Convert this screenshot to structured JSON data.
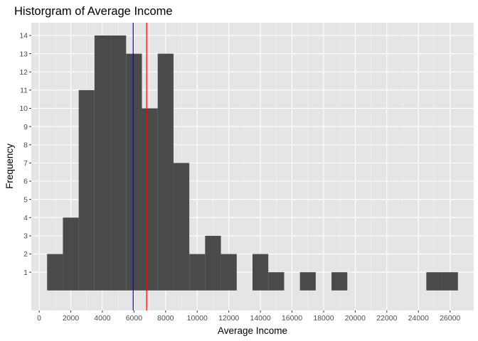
{
  "chart_data": {
    "type": "histogram",
    "title": "Historgram of Average Income",
    "xlabel": "Average Income",
    "ylabel": "Frequency",
    "bin_width": 1000,
    "bins": [
      {
        "start": 500,
        "end": 1500,
        "count": 2
      },
      {
        "start": 1500,
        "end": 2500,
        "count": 4
      },
      {
        "start": 2500,
        "end": 3500,
        "count": 11
      },
      {
        "start": 3500,
        "end": 4500,
        "count": 14
      },
      {
        "start": 4500,
        "end": 5500,
        "count": 14
      },
      {
        "start": 5500,
        "end": 6500,
        "count": 13
      },
      {
        "start": 6500,
        "end": 7500,
        "count": 10
      },
      {
        "start": 7500,
        "end": 8500,
        "count": 13
      },
      {
        "start": 8500,
        "end": 9500,
        "count": 7
      },
      {
        "start": 9500,
        "end": 10500,
        "count": 2
      },
      {
        "start": 10500,
        "end": 11500,
        "count": 3
      },
      {
        "start": 11500,
        "end": 12500,
        "count": 2
      },
      {
        "start": 13500,
        "end": 14500,
        "count": 2
      },
      {
        "start": 14500,
        "end": 15500,
        "count": 1
      },
      {
        "start": 16500,
        "end": 17500,
        "count": 1
      },
      {
        "start": 18500,
        "end": 19500,
        "count": 1
      },
      {
        "start": 24500,
        "end": 25500,
        "count": 1
      },
      {
        "start": 25500,
        "end": 26500,
        "count": 1
      }
    ],
    "xlim": [
      -500,
      27500
    ],
    "ylim": [
      -1.1,
      14.7
    ],
    "x_ticks": [
      0,
      2000,
      4000,
      6000,
      8000,
      10000,
      12000,
      14000,
      16000,
      18000,
      20000,
      22000,
      24000,
      26000
    ],
    "y_ticks": [
      1,
      2,
      3,
      4,
      5,
      6,
      7,
      8,
      9,
      10,
      11,
      12,
      13,
      14
    ],
    "vlines": [
      {
        "x": 5950,
        "color": "#0000ff"
      },
      {
        "x": 6800,
        "color": "#ff0000"
      }
    ],
    "grid": true,
    "legend": "none",
    "colors": {
      "bar": "#4a4a4a",
      "panel": "#e5e5e5",
      "grid": "#ffffff"
    }
  }
}
